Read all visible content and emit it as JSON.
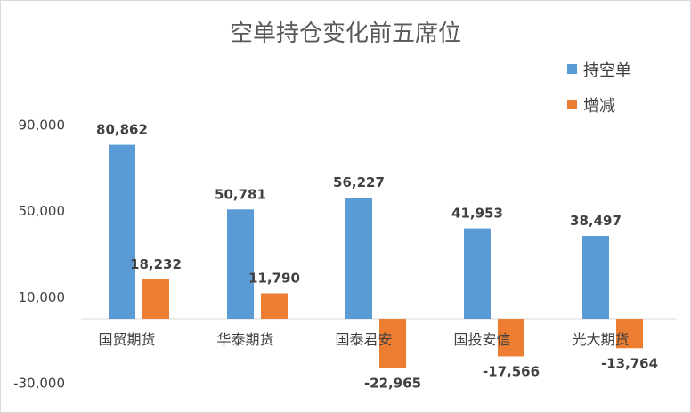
{
  "chart_data": {
    "type": "bar",
    "title": "空单持仓变化前五席位",
    "categories": [
      "国贸期货",
      "华泰期货",
      "国泰君安",
      "国投安信",
      "光大期货"
    ],
    "series": [
      {
        "name": "持空单",
        "color": "#5B9BD5",
        "values": [
          80862,
          50781,
          56227,
          41953,
          38497
        ],
        "labels": [
          "80,862",
          "50,781",
          "56,227",
          "41,953",
          "38,497"
        ]
      },
      {
        "name": "增减",
        "color": "#ED7D31",
        "values": [
          18232,
          11790,
          -22965,
          -17566,
          -13764
        ],
        "labels": [
          "18,232",
          "11,790",
          "-22,965",
          "-17,566",
          "-13,764"
        ]
      }
    ],
    "y_ticks": [
      {
        "value": 90000,
        "label": "90,000"
      },
      {
        "value": 50000,
        "label": "50,000"
      },
      {
        "value": 10000,
        "label": "10,000"
      },
      {
        "value": -30000,
        "label": "-30,000"
      }
    ],
    "legend_position": "top-right",
    "grid": false
  }
}
